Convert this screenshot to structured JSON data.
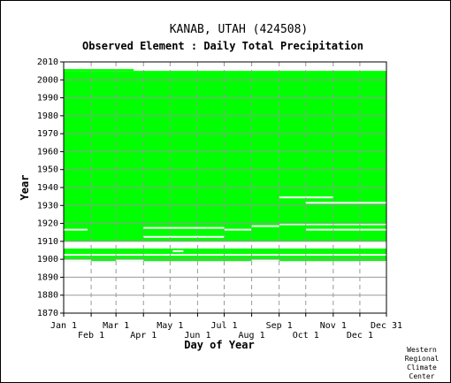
{
  "chart_data": {
    "type": "heatmap",
    "title": "KANAB, UTAH   (424508)",
    "subtitle": "Observed Element : Daily Total Precipitation",
    "xlabel": "Day of Year",
    "ylabel": "Year",
    "credit": [
      "Western",
      "Regional",
      "Climate",
      "Center"
    ],
    "xlim": [
      1,
      365
    ],
    "ylim": [
      1870,
      2010
    ],
    "x_ticks_upper": [
      {
        "label": "Jan 1",
        "day": 1
      },
      {
        "label": "Mar 1",
        "day": 60
      },
      {
        "label": "May 1",
        "day": 121
      },
      {
        "label": "Jul 1",
        "day": 182
      },
      {
        "label": "Sep 1",
        "day": 244
      },
      {
        "label": "Nov 1",
        "day": 305
      },
      {
        "label": "Dec 31",
        "day": 365
      }
    ],
    "x_ticks_lower": [
      {
        "label": "Feb 1",
        "day": 32
      },
      {
        "label": "Apr 1",
        "day": 91
      },
      {
        "label": "Jun 1",
        "day": 152
      },
      {
        "label": "Aug 1",
        "day": 213
      },
      {
        "label": "Oct 1",
        "day": 274
      },
      {
        "label": "Dec 1",
        "day": 335
      }
    ],
    "y_ticks": [
      1870,
      1880,
      1890,
      1900,
      1910,
      1920,
      1930,
      1940,
      1950,
      1960,
      1970,
      1980,
      1990,
      2000,
      2010
    ],
    "grid": true,
    "colors": {
      "data": "#00ff00",
      "grid": "#999999",
      "background": "#ffffff",
      "axis": "#000000"
    },
    "coverage_blocks": [
      {
        "day_start": 1,
        "day_end": 365,
        "year_start": 1899,
        "year_end": 1906
      },
      {
        "day_start": 1,
        "day_end": 365,
        "year_start": 1910,
        "year_end": 2005
      },
      {
        "day_start": 1,
        "day_end": 60,
        "year_start": 2005,
        "year_end": 2006
      },
      {
        "day_start": 60,
        "day_end": 80,
        "year_start": 2005,
        "year_end": 2006
      }
    ],
    "gaps": [
      {
        "day_start": 1,
        "day_end": 32,
        "year_start": 1899,
        "year_end": 1900
      },
      {
        "day_start": 60,
        "day_end": 91,
        "year_start": 1899,
        "year_end": 1900
      },
      {
        "day_start": 213,
        "day_end": 244,
        "year_start": 1899,
        "year_end": 1900
      },
      {
        "day_start": 335,
        "day_end": 365,
        "year_start": 1898,
        "year_end": 1899
      },
      {
        "day_start": 1,
        "day_end": 365,
        "year_start": 1902,
        "year_end": 1903
      },
      {
        "day_start": 124,
        "day_end": 136,
        "year_start": 1904,
        "year_end": 1905
      },
      {
        "day_start": 1,
        "day_end": 28,
        "year_start": 1916,
        "year_end": 1917
      },
      {
        "day_start": 91,
        "day_end": 182,
        "year_start": 1912,
        "year_end": 1913
      },
      {
        "day_start": 91,
        "day_end": 182,
        "year_start": 1917,
        "year_end": 1918
      },
      {
        "day_start": 182,
        "day_end": 213,
        "year_start": 1916,
        "year_end": 1917
      },
      {
        "day_start": 213,
        "day_end": 244,
        "year_start": 1918,
        "year_end": 1919
      },
      {
        "day_start": 244,
        "day_end": 365,
        "year_start": 1919,
        "year_end": 1920
      },
      {
        "day_start": 274,
        "day_end": 365,
        "year_start": 1916,
        "year_end": 1917
      },
      {
        "day_start": 244,
        "day_end": 305,
        "year_start": 1934,
        "year_end": 1935
      },
      {
        "day_start": 274,
        "day_end": 365,
        "year_start": 1931,
        "year_end": 1932
      }
    ]
  }
}
